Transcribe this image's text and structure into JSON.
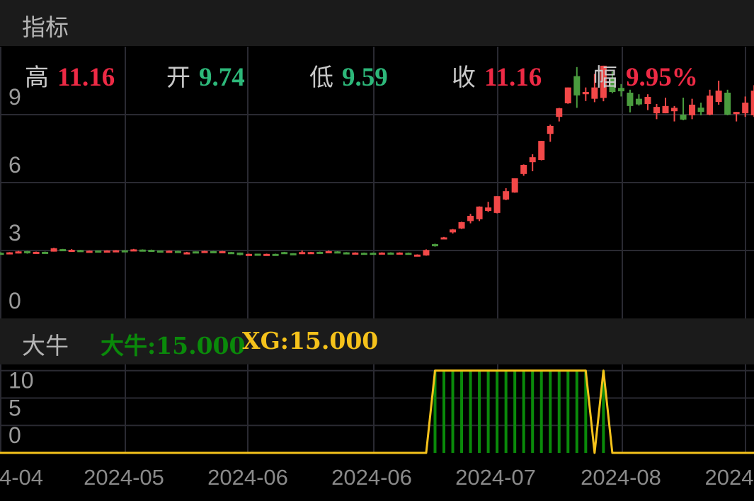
{
  "header": {
    "title": "指标"
  },
  "ohlc": [
    {
      "label": "高",
      "value": "11.16",
      "color": "#ee2a45"
    },
    {
      "label": "开",
      "value": "9.74",
      "color": "#2db87a"
    },
    {
      "label": "低",
      "value": "9.59",
      "color": "#2db87a"
    },
    {
      "label": "收",
      "value": "11.16",
      "color": "#ee2a45"
    },
    {
      "label": "幅",
      "value": "9.95%",
      "color": "#ee2a45"
    }
  ],
  "indicator_panel": {
    "title": "大牛",
    "readouts": [
      {
        "text": "大牛:15.000",
        "color": "#0a8a0a"
      },
      {
        "text": "XG:15.000",
        "color": "#f5c21b"
      }
    ]
  },
  "colors": {
    "up": "#f24848",
    "down": "#4a9c3e",
    "grid": "#2a2a32",
    "daniu": "#0a8a0a",
    "xg": "#f5c21b"
  },
  "chart_data": [
    {
      "type": "candlestick",
      "y_ticks": [
        "9",
        "6",
        "3",
        "0"
      ],
      "y_tick_values": [
        9,
        6,
        3,
        0
      ],
      "ylim": [
        0,
        14
      ],
      "x_tick_labels": [
        "4-04",
        "2024-05",
        "2024-06",
        "2024-06",
        "2024-07",
        "2024-08",
        "2024"
      ],
      "ohlc": [
        [
          2.9,
          2.92,
          2.82,
          2.84
        ],
        [
          2.84,
          2.93,
          2.83,
          2.92
        ],
        [
          2.88,
          2.98,
          2.87,
          2.96
        ],
        [
          2.97,
          2.98,
          2.86,
          2.88
        ],
        [
          2.9,
          2.95,
          2.89,
          2.94
        ],
        [
          2.94,
          2.95,
          2.88,
          2.89
        ],
        [
          2.95,
          3.12,
          2.95,
          3.1
        ],
        [
          3.06,
          3.07,
          3.0,
          3.01
        ],
        [
          2.98,
          3.06,
          2.97,
          3.03
        ],
        [
          3.02,
          3.03,
          2.94,
          2.95
        ],
        [
          2.94,
          3.0,
          2.93,
          2.99
        ],
        [
          3.0,
          3.0,
          2.92,
          2.93
        ],
        [
          2.96,
          3.01,
          2.95,
          3.0
        ],
        [
          2.97,
          3.02,
          2.96,
          3.01
        ],
        [
          3.01,
          3.02,
          2.95,
          2.96
        ],
        [
          2.98,
          3.07,
          2.97,
          3.05
        ],
        [
          3.04,
          3.05,
          3.0,
          3.01
        ],
        [
          3.03,
          3.04,
          2.96,
          2.97
        ],
        [
          3.0,
          3.0,
          2.94,
          2.95
        ],
        [
          2.95,
          3.0,
          2.94,
          2.99
        ],
        [
          2.98,
          2.99,
          2.91,
          2.92
        ],
        [
          2.9,
          2.94,
          2.88,
          2.92
        ],
        [
          2.96,
          2.96,
          2.9,
          2.91
        ],
        [
          2.92,
          2.99,
          2.91,
          2.98
        ],
        [
          2.97,
          2.98,
          2.92,
          2.93
        ],
        [
          2.93,
          2.98,
          2.92,
          2.97
        ],
        [
          2.93,
          2.94,
          2.87,
          2.88
        ],
        [
          2.91,
          2.91,
          2.79,
          2.8
        ],
        [
          2.8,
          2.86,
          2.79,
          2.85
        ],
        [
          2.86,
          2.86,
          2.81,
          2.82
        ],
        [
          2.81,
          2.86,
          2.8,
          2.85
        ],
        [
          2.85,
          2.86,
          2.8,
          2.82
        ],
        [
          2.93,
          2.94,
          2.86,
          2.87
        ],
        [
          2.88,
          2.88,
          2.82,
          2.83
        ],
        [
          2.85,
          3.0,
          2.84,
          2.93
        ],
        [
          2.9,
          2.94,
          2.89,
          2.93
        ],
        [
          2.94,
          2.95,
          2.88,
          2.89
        ],
        [
          2.9,
          3.0,
          2.89,
          2.97
        ],
        [
          2.96,
          2.97,
          2.89,
          2.9
        ],
        [
          2.92,
          2.93,
          2.88,
          2.89
        ],
        [
          2.88,
          2.92,
          2.87,
          2.91
        ],
        [
          2.9,
          2.91,
          2.86,
          2.87
        ],
        [
          2.9,
          2.91,
          2.86,
          2.87
        ],
        [
          2.87,
          2.92,
          2.86,
          2.91
        ],
        [
          2.91,
          2.92,
          2.87,
          2.88
        ],
        [
          2.87,
          2.92,
          2.86,
          2.91
        ],
        [
          2.9,
          2.91,
          2.84,
          2.85
        ],
        [
          2.8,
          2.83,
          2.78,
          2.82
        ],
        [
          2.78,
          3.05,
          2.77,
          3.02
        ],
        [
          3.28,
          3.3,
          3.17,
          3.2
        ],
        [
          3.54,
          3.6,
          3.52,
          3.58
        ],
        [
          3.8,
          3.95,
          3.75,
          3.93
        ],
        [
          3.97,
          4.27,
          3.95,
          4.25
        ],
        [
          4.3,
          4.62,
          4.2,
          4.53
        ],
        [
          4.38,
          4.95,
          4.3,
          4.94
        ],
        [
          4.75,
          5.15,
          4.7,
          4.9
        ],
        [
          4.66,
          5.4,
          4.64,
          5.4
        ],
        [
          5.25,
          5.75,
          5.22,
          5.62
        ],
        [
          5.56,
          6.19,
          5.55,
          6.19
        ],
        [
          6.38,
          6.8,
          6.3,
          6.78
        ],
        [
          6.9,
          7.25,
          6.5,
          7.12
        ],
        [
          7.0,
          7.84,
          6.98,
          7.84
        ],
        [
          8.15,
          8.56,
          7.8,
          8.5
        ],
        [
          8.9,
          9.3,
          8.7,
          9.28
        ],
        [
          9.5,
          10.2,
          9.48,
          10.2
        ],
        [
          10.7,
          11.1,
          9.3,
          9.85
        ],
        [
          9.9,
          10.2,
          9.6,
          10.0
        ],
        [
          9.7,
          10.8,
          9.55,
          10.2
        ],
        [
          9.74,
          11.16,
          9.59,
          11.16
        ],
        [
          10.6,
          10.9,
          9.95,
          10.0
        ],
        [
          10.18,
          10.35,
          9.8,
          10.03
        ],
        [
          9.97,
          10.1,
          9.1,
          9.38
        ],
        [
          9.7,
          9.9,
          9.4,
          9.45
        ],
        [
          9.47,
          9.9,
          9.2,
          9.78
        ],
        [
          9.06,
          9.47,
          8.8,
          9.34
        ],
        [
          9.06,
          9.75,
          9.06,
          9.38
        ],
        [
          9.15,
          9.38,
          8.7,
          9.3
        ],
        [
          9.0,
          9.75,
          8.75,
          8.78
        ],
        [
          8.97,
          9.7,
          8.8,
          9.44
        ],
        [
          9.31,
          9.53,
          8.97,
          9.12
        ],
        [
          9.0,
          10.1,
          8.97,
          9.84
        ],
        [
          9.56,
          10.5,
          9.44,
          10.06
        ],
        [
          9.97,
          10.1,
          8.97,
          9.0
        ],
        [
          9.03,
          9.12,
          8.7,
          9.12
        ],
        [
          9.06,
          9.8,
          8.9,
          9.53
        ],
        [
          8.97,
          10.3,
          8.9,
          10.06
        ]
      ]
    },
    {
      "type": "bar+line",
      "y_ticks": [
        "10",
        "5",
        "0"
      ],
      "y_tick_values": [
        10,
        5,
        0
      ],
      "ylim": [
        0,
        15
      ],
      "series": [
        {
          "name": "大牛",
          "type": "bar",
          "values": [
            0,
            0,
            0,
            0,
            0,
            0,
            0,
            0,
            0,
            0,
            0,
            0,
            0,
            0,
            0,
            0,
            0,
            0,
            0,
            0,
            0,
            0,
            0,
            0,
            0,
            0,
            0,
            0,
            0,
            0,
            0,
            0,
            0,
            0,
            0,
            0,
            0,
            0,
            0,
            0,
            0,
            0,
            0,
            0,
            0,
            0,
            0,
            0,
            0,
            15,
            15,
            15,
            15,
            15,
            15,
            15,
            15,
            15,
            15,
            15,
            15,
            15,
            15,
            15,
            15,
            15,
            15,
            0,
            15,
            0,
            0,
            0,
            0,
            0,
            0,
            0,
            0,
            0,
            0,
            0,
            0,
            0,
            0,
            0,
            0,
            0
          ]
        },
        {
          "name": "XG",
          "type": "line",
          "values": [
            0,
            0,
            0,
            0,
            0,
            0,
            0,
            0,
            0,
            0,
            0,
            0,
            0,
            0,
            0,
            0,
            0,
            0,
            0,
            0,
            0,
            0,
            0,
            0,
            0,
            0,
            0,
            0,
            0,
            0,
            0,
            0,
            0,
            0,
            0,
            0,
            0,
            0,
            0,
            0,
            0,
            0,
            0,
            0,
            0,
            0,
            0,
            0,
            0,
            15,
            15,
            15,
            15,
            15,
            15,
            15,
            15,
            15,
            15,
            15,
            15,
            15,
            15,
            15,
            15,
            15,
            15,
            0,
            15,
            0,
            0,
            0,
            0,
            0,
            0,
            0,
            0,
            0,
            0,
            0,
            0,
            0,
            0,
            0,
            0,
            0
          ]
        }
      ]
    }
  ]
}
